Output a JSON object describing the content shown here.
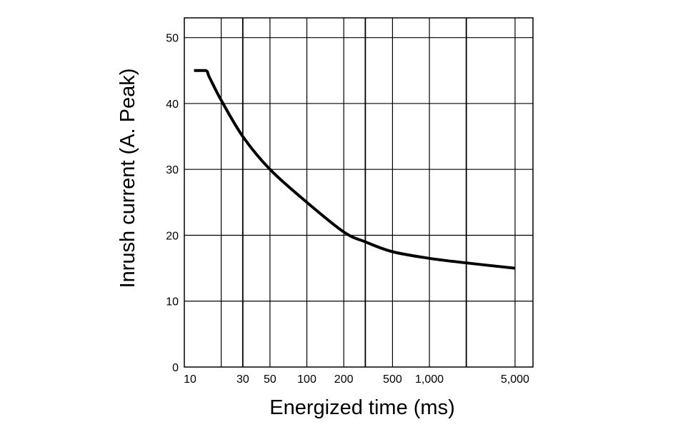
{
  "chart_data": {
    "type": "line",
    "title": "",
    "xlabel": "Energized time (ms)",
    "ylabel": "Inrush current (A. Peak)",
    "x_scale": "log",
    "xlim": [
      10,
      7000
    ],
    "ylim": [
      0,
      53
    ],
    "grid": true,
    "x_ticks": [
      {
        "value": 10,
        "label": "10"
      },
      {
        "value": 30,
        "label": "30"
      },
      {
        "value": 50,
        "label": "50"
      },
      {
        "value": 100,
        "label": "100"
      },
      {
        "value": 200,
        "label": "200"
      },
      {
        "value": 500,
        "label": "500"
      },
      {
        "value": 1000,
        "label": "1,000"
      },
      {
        "value": 5000,
        "label": "5,000"
      }
    ],
    "x_gridlines": [
      20,
      30,
      50,
      100,
      200,
      300,
      500,
      1000,
      2000,
      5000
    ],
    "y_ticks": [
      {
        "value": 0,
        "label": "0"
      },
      {
        "value": 10,
        "label": "10"
      },
      {
        "value": 20,
        "label": "20"
      },
      {
        "value": 30,
        "label": "30"
      },
      {
        "value": 40,
        "label": "40"
      },
      {
        "value": 50,
        "label": "50"
      }
    ],
    "series": [
      {
        "x": [
          12,
          15,
          16,
          20,
          30,
          50,
          100,
          200,
          300,
          500,
          1000,
          2000,
          5000
        ],
        "y": [
          45,
          45,
          44,
          40.5,
          35,
          30,
          25,
          20.5,
          19,
          17.5,
          16.5,
          15.8,
          15
        ]
      }
    ]
  }
}
